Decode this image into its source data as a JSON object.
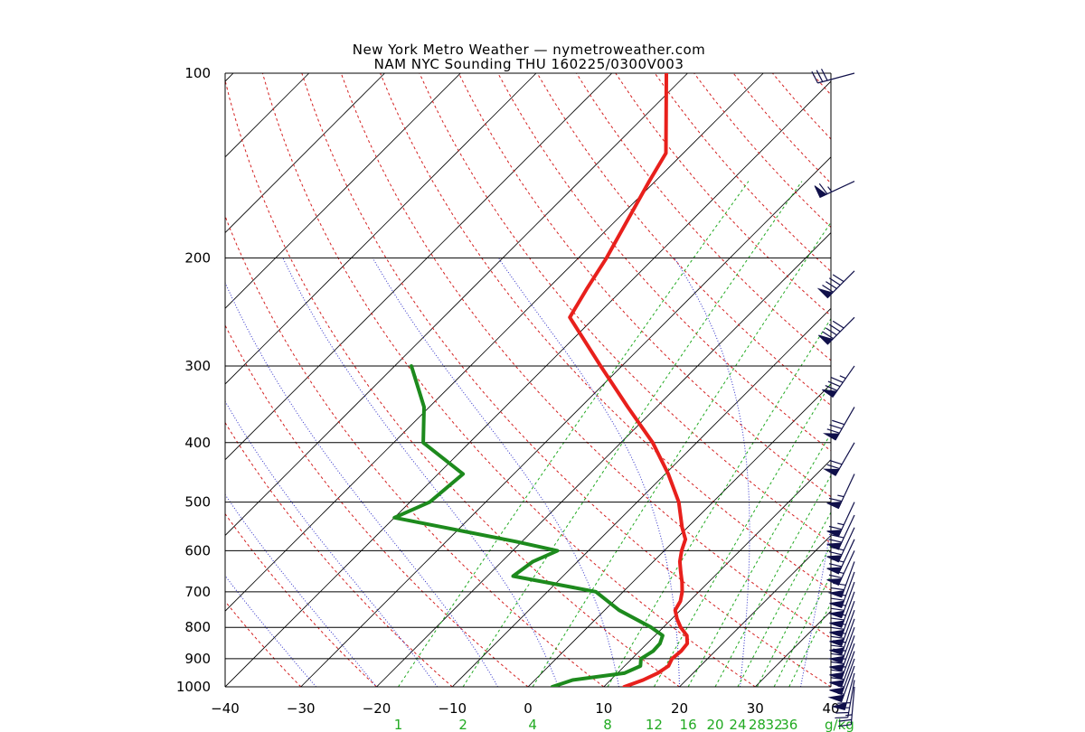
{
  "title_line1": "New York Metro Weather — nymetroweather.com",
  "title_line2": "NAM NYC Sounding  THU 160225/0300V003",
  "chart_data": {
    "type": "line",
    "chart_kind": "skew-T log-P sounding",
    "y_axis": {
      "scale": "log",
      "unit": "hPa",
      "range": [
        1000,
        100
      ],
      "tick_labels": [
        100,
        200,
        300,
        400,
        500,
        600,
        700,
        800,
        900,
        1000
      ]
    },
    "x_axis": {
      "unit": "°C",
      "range": [
        -40,
        40
      ],
      "tick_labels": [
        -40,
        -30,
        -20,
        -10,
        0,
        10,
        20,
        30,
        40
      ]
    },
    "mixing_ratio_labels": [
      "1",
      "2",
      "4",
      "8",
      "12",
      "16",
      "20",
      "24",
      "28",
      "32",
      "36"
    ],
    "mixing_ratio_unit": "g/kg",
    "mixing_ratio_values": [
      1,
      2,
      4,
      8,
      12,
      16,
      20,
      24,
      28,
      32,
      36
    ],
    "series": [
      {
        "color": "#e8201c",
        "points": [
          {
            "p": 1000,
            "t": 12.7
          },
          {
            "p": 975,
            "t": 14.3
          },
          {
            "p": 950,
            "t": 15.3
          },
          {
            "p": 925,
            "t": 15.8
          },
          {
            "p": 900,
            "t": 15.3
          },
          {
            "p": 875,
            "t": 15.5
          },
          {
            "p": 850,
            "t": 15.3
          },
          {
            "p": 825,
            "t": 14.2
          },
          {
            "p": 800,
            "t": 12.3
          },
          {
            "p": 775,
            "t": 10.7
          },
          {
            "p": 750,
            "t": 9.3
          },
          {
            "p": 725,
            "t": 8.8
          },
          {
            "p": 700,
            "t": 7.8
          },
          {
            "p": 675,
            "t": 6.5
          },
          {
            "p": 650,
            "t": 5.0
          },
          {
            "p": 625,
            "t": 3.5
          },
          {
            "p": 600,
            "t": 2.3
          },
          {
            "p": 575,
            "t": 1.3
          },
          {
            "p": 550,
            "t": -0.7
          },
          {
            "p": 500,
            "t": -4.5
          },
          {
            "p": 450,
            "t": -9.6
          },
          {
            "p": 400,
            "t": -15.8
          },
          {
            "p": 350,
            "t": -23.8
          },
          {
            "p": 300,
            "t": -32.8
          },
          {
            "p": 250,
            "t": -43.3
          },
          {
            "p": 225,
            "t": -44.8
          },
          {
            "p": 200,
            "t": -46.3
          },
          {
            "p": 150,
            "t": -50.8
          },
          {
            "p": 135,
            "t": -52.3
          },
          {
            "p": 100,
            "t": -62.8
          }
        ]
      },
      {
        "color": "#1d8a1d",
        "points": [
          {
            "p": 1000,
            "t": 3.2
          },
          {
            "p": 975,
            "t": 5.0
          },
          {
            "p": 950,
            "t": 10.9
          },
          {
            "p": 925,
            "t": 12.1
          },
          {
            "p": 900,
            "t": 11.2
          },
          {
            "p": 875,
            "t": 11.8
          },
          {
            "p": 850,
            "t": 11.7
          },
          {
            "p": 825,
            "t": 11.0
          },
          {
            "p": 800,
            "t": 8.4
          },
          {
            "p": 750,
            "t": 1.9
          },
          {
            "p": 700,
            "t": -3.6
          },
          {
            "p": 660,
            "t": -16.6
          },
          {
            "p": 625,
            "t": -15.9
          },
          {
            "p": 600,
            "t": -14.1
          },
          {
            "p": 580,
            "t": -20.7
          },
          {
            "p": 530,
            "t": -40.0
          },
          {
            "p": 500,
            "t": -37.4
          },
          {
            "p": 450,
            "t": -36.7
          },
          {
            "p": 400,
            "t": -46.1
          },
          {
            "p": 350,
            "t": -50.7
          },
          {
            "p": 300,
            "t": -57.8
          }
        ]
      }
    ],
    "wind_barbs": [
      {
        "p": 100,
        "dir": 255,
        "speed": 30
      },
      {
        "p": 150,
        "dir": 245,
        "speed": 65
      },
      {
        "p": 210,
        "dir": 225,
        "speed": 90
      },
      {
        "p": 250,
        "dir": 225,
        "speed": 90
      },
      {
        "p": 300,
        "dir": 215,
        "speed": 85
      },
      {
        "p": 350,
        "dir": 210,
        "speed": 80
      },
      {
        "p": 400,
        "dir": 210,
        "speed": 70
      },
      {
        "p": 450,
        "dir": 205,
        "speed": 65
      },
      {
        "p": 500,
        "dir": 205,
        "speed": 65
      },
      {
        "p": 525,
        "dir": 205,
        "speed": 70
      },
      {
        "p": 550,
        "dir": 205,
        "speed": 70
      },
      {
        "p": 575,
        "dir": 205,
        "speed": 70
      },
      {
        "p": 600,
        "dir": 205,
        "speed": 70
      },
      {
        "p": 625,
        "dir": 200,
        "speed": 70
      },
      {
        "p": 650,
        "dir": 200,
        "speed": 70
      },
      {
        "p": 675,
        "dir": 200,
        "speed": 70
      },
      {
        "p": 700,
        "dir": 200,
        "speed": 70
      },
      {
        "p": 725,
        "dir": 200,
        "speed": 70
      },
      {
        "p": 750,
        "dir": 200,
        "speed": 70
      },
      {
        "p": 775,
        "dir": 200,
        "speed": 70
      },
      {
        "p": 800,
        "dir": 200,
        "speed": 70
      },
      {
        "p": 825,
        "dir": 200,
        "speed": 65
      },
      {
        "p": 850,
        "dir": 200,
        "speed": 65
      },
      {
        "p": 875,
        "dir": 200,
        "speed": 60
      },
      {
        "p": 900,
        "dir": 200,
        "speed": 55
      },
      {
        "p": 925,
        "dir": 200,
        "speed": 55
      },
      {
        "p": 950,
        "dir": 195,
        "speed": 50
      },
      {
        "p": 975,
        "dir": 190,
        "speed": 40
      },
      {
        "p": 1000,
        "dir": 185,
        "speed": 25
      }
    ],
    "colors": {
      "isobars": "#000000",
      "isotherms": "#000000",
      "dry_adiabats": "#d42020",
      "moist_adiabats": "#3030c8",
      "mixing_ratio_lines": "#22aa22",
      "barbs": "#10104a"
    }
  }
}
